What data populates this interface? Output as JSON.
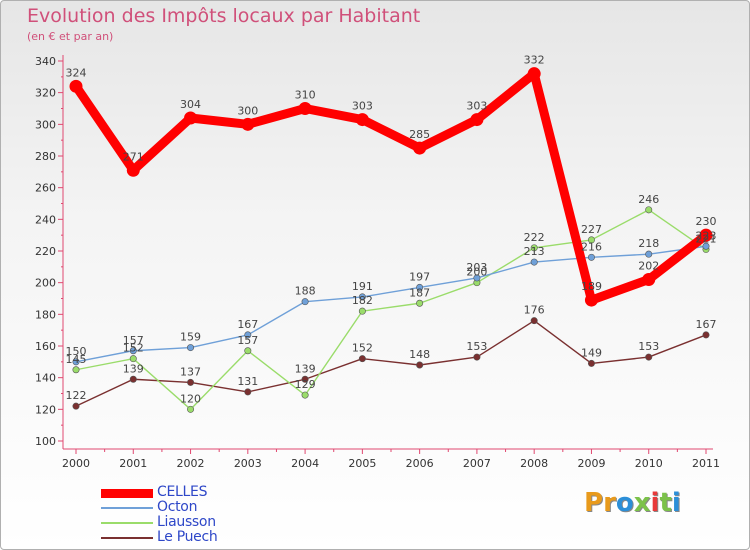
{
  "header": {
    "title": "Evolution des Impôts locaux par Habitant",
    "subtitle": "(en € et par an)"
  },
  "logo": {
    "text": "Proxiti",
    "letters": [
      "P",
      "r",
      "o",
      "x",
      "i",
      "t",
      "i"
    ],
    "colors": [
      "#e89a1c",
      "#e89a1c",
      "#2c8fd8",
      "#7cc24a",
      "#e83a3a",
      "#7cc24a",
      "#2c8fd8"
    ]
  },
  "chart_data": {
    "type": "line",
    "title": "Evolution des Impôts locaux par Habitant",
    "subtitle": "(en € et par an)",
    "xlabel": "",
    "ylabel": "",
    "x": [
      "2000",
      "2001",
      "2002",
      "2003",
      "2004",
      "2005",
      "2006",
      "2007",
      "2008",
      "2009",
      "2010",
      "2011"
    ],
    "ylim": [
      100,
      340
    ],
    "yticks": [
      100,
      120,
      140,
      160,
      180,
      200,
      220,
      240,
      260,
      280,
      300,
      320,
      340
    ],
    "grid": false,
    "legend_position": "bottom-left",
    "series": [
      {
        "name": "CELLES",
        "color": "#ff0000",
        "values": [
          324,
          271,
          304,
          300,
          310,
          303,
          285,
          303,
          332,
          189,
          202,
          230
        ],
        "labels": [
          "324",
          "271",
          "304",
          "300",
          "310",
          "303",
          "285",
          "303",
          "332",
          "189",
          "202",
          "230"
        ]
      },
      {
        "name": "Octon",
        "color": "#6fa0d8",
        "values": [
          150,
          157,
          159,
          167,
          188,
          191,
          197,
          203,
          213,
          216,
          218,
          223
        ],
        "labels": [
          "150",
          "157",
          "159",
          "167",
          "188",
          "191",
          "197",
          "203",
          "213",
          "216",
          "218",
          "223"
        ]
      },
      {
        "name": "Liausson",
        "color": "#9adc6a",
        "values": [
          145,
          152,
          120,
          157,
          129,
          182,
          187,
          200,
          222,
          227,
          246,
          221
        ],
        "labels": [
          "145",
          "152",
          "120",
          "157",
          "129",
          "182",
          "187",
          "200",
          "222",
          "227",
          "246",
          "221"
        ]
      },
      {
        "name": "Le Puech",
        "color": "#7a3030",
        "values": [
          122,
          139,
          137,
          131,
          139,
          152,
          148,
          153,
          176,
          149,
          153,
          167
        ],
        "labels": [
          "122",
          "139",
          "137",
          "131",
          "139",
          "152",
          "148",
          "153",
          "176",
          "149",
          "153",
          "167"
        ]
      }
    ]
  }
}
